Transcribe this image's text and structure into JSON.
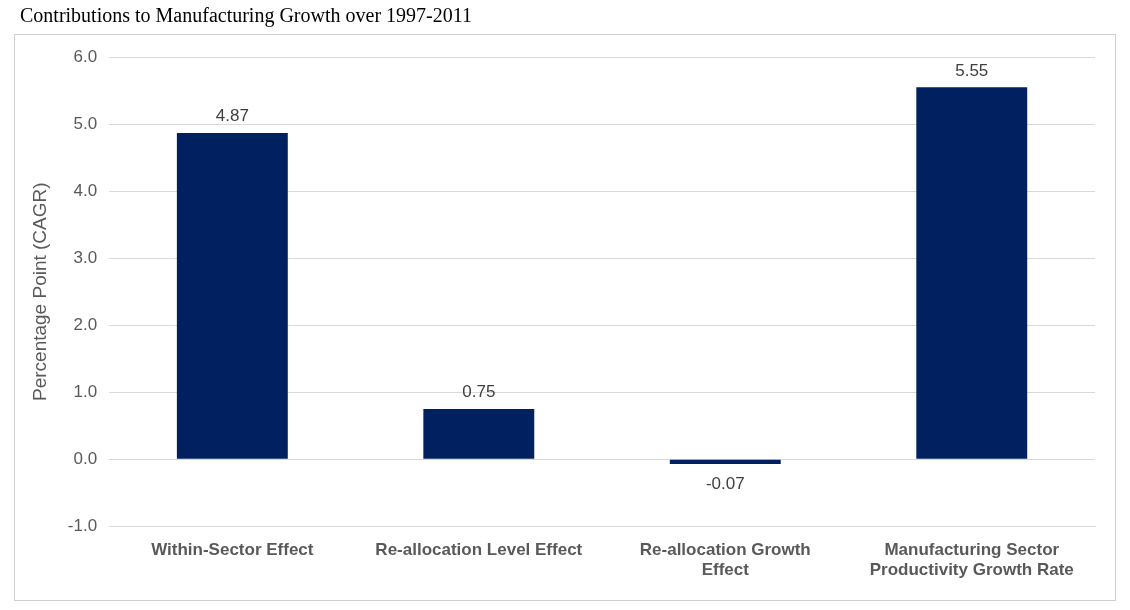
{
  "chart_data": {
    "type": "bar",
    "title": "Contributions to Manufacturing Growth over 1997-2011",
    "ylabel": "Percentage Point (CAGR)",
    "categories": [
      "Within-Sector Effect",
      "Re-allocation Level Effect",
      "Re-allocation Growth Effect",
      "Manufacturing Sector Productivity Growth Rate"
    ],
    "values": [
      4.87,
      0.75,
      -0.07,
      5.55
    ],
    "color": "#002060",
    "ylim": [
      -1,
      6
    ],
    "yticks": [
      {
        "value": -1,
        "label": "-1.0"
      },
      {
        "value": 0,
        "label": "0.0"
      },
      {
        "value": 1,
        "label": "1.0"
      },
      {
        "value": 2,
        "label": "2.0"
      },
      {
        "value": 3,
        "label": "3.0"
      },
      {
        "value": 4,
        "label": "4.0"
      },
      {
        "value": 5,
        "label": "5.0"
      },
      {
        "value": 6,
        "label": "6.0"
      }
    ],
    "grid": "y",
    "data_labels": true,
    "legend": false
  }
}
